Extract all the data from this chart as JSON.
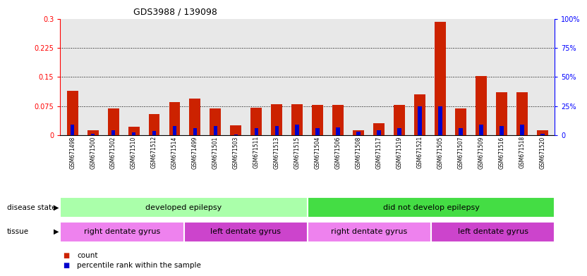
{
  "title": "GDS3988 / 139098",
  "samples": [
    "GSM671498",
    "GSM671500",
    "GSM671502",
    "GSM671510",
    "GSM671512",
    "GSM671514",
    "GSM671499",
    "GSM671501",
    "GSM671503",
    "GSM671511",
    "GSM671513",
    "GSM671515",
    "GSM671504",
    "GSM671506",
    "GSM671508",
    "GSM671517",
    "GSM671519",
    "GSM671521",
    "GSM671505",
    "GSM671507",
    "GSM671509",
    "GSM671516",
    "GSM671518",
    "GSM671520"
  ],
  "red_values": [
    0.115,
    0.013,
    0.068,
    0.022,
    0.055,
    0.085,
    0.095,
    0.068,
    0.025,
    0.07,
    0.08,
    0.08,
    0.078,
    0.078,
    0.013,
    0.03,
    0.078,
    0.105,
    0.292,
    0.068,
    0.153,
    0.11,
    0.11,
    0.013
  ],
  "blue_values": [
    0.028,
    0.004,
    0.013,
    0.007,
    0.01,
    0.023,
    0.018,
    0.023,
    0.001,
    0.018,
    0.023,
    0.028,
    0.018,
    0.02,
    0.009,
    0.013,
    0.018,
    0.075,
    0.075,
    0.018,
    0.028,
    0.023,
    0.028,
    0.004
  ],
  "ylim_left": [
    0,
    0.3
  ],
  "ylim_right": [
    0,
    100
  ],
  "yticks_left": [
    0,
    0.075,
    0.15,
    0.225,
    0.3
  ],
  "ytick_labels_left": [
    "0",
    "0.075",
    "0.15",
    "0.225",
    "0.3"
  ],
  "yticks_right": [
    0,
    25,
    50,
    75,
    100
  ],
  "ytick_labels_right": [
    "0",
    "25%",
    "50%",
    "75%",
    "100%"
  ],
  "grid_values": [
    0.075,
    0.15,
    0.225
  ],
  "disease_groups": [
    {
      "label": "developed epilepsy",
      "start": 0,
      "end": 12,
      "color": "#AAFFAA"
    },
    {
      "label": "did not develop epilepsy",
      "start": 12,
      "end": 24,
      "color": "#44DD44"
    }
  ],
  "tissue_colors": [
    "#EE82EE",
    "#CC44CC",
    "#EE82EE",
    "#CC44CC"
  ],
  "tissue_groups": [
    {
      "label": "right dentate gyrus",
      "start": 0,
      "end": 6
    },
    {
      "label": "left dentate gyrus",
      "start": 6,
      "end": 12
    },
    {
      "label": "right dentate gyrus",
      "start": 12,
      "end": 18
    },
    {
      "label": "left dentate gyrus",
      "start": 18,
      "end": 24
    }
  ],
  "bar_width": 0.55,
  "red_color": "#CC2200",
  "blue_color": "#0000CC",
  "bg_color": "#E8E8E8",
  "legend_red": "count",
  "legend_blue": "percentile rank within the sample",
  "disease_label": "disease state",
  "tissue_label": "tissue"
}
